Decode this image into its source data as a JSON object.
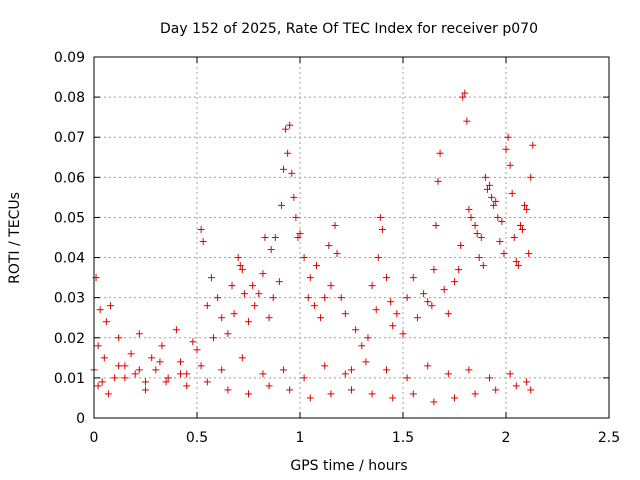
{
  "chart_data": {
    "type": "scatter",
    "title": "Day 152 of 2025, Rate Of TEC Index for receiver p070",
    "xlabel": "GPS time / hours",
    "ylabel": "ROTI / TECUs",
    "xlim": [
      0,
      2.5
    ],
    "ylim": [
      0,
      0.09
    ],
    "xticks": [
      0,
      0.5,
      1,
      1.5,
      2,
      2.5
    ],
    "xtick_labels": [
      "0",
      "0.5",
      "1",
      "1.5",
      "2",
      "2.5"
    ],
    "yticks": [
      0,
      0.01,
      0.02,
      0.03,
      0.04,
      0.05,
      0.06,
      0.07,
      0.08,
      0.09
    ],
    "ytick_labels": [
      "0",
      "0.01",
      "0.02",
      "0.03",
      "0.04",
      "0.05",
      "0.06",
      "0.07",
      "0.08",
      "0.09"
    ],
    "grid": true,
    "marker": "+",
    "color": "#e00000",
    "series": [
      {
        "name": "ROTI",
        "x": [
          0.0,
          0.01,
          0.02,
          0.03,
          0.05,
          0.06,
          0.08,
          0.1,
          0.12,
          0.15,
          0.18,
          0.2,
          0.22,
          0.25,
          0.28,
          0.3,
          0.33,
          0.36,
          0.4,
          0.42,
          0.45,
          0.48,
          0.5,
          0.52,
          0.53,
          0.55,
          0.57,
          0.58,
          0.6,
          0.62,
          0.65,
          0.67,
          0.68,
          0.7,
          0.71,
          0.72,
          0.73,
          0.75,
          0.77,
          0.78,
          0.8,
          0.82,
          0.83,
          0.85,
          0.86,
          0.87,
          0.88,
          0.9,
          0.91,
          0.92,
          0.93,
          0.94,
          0.95,
          0.96,
          0.97,
          0.98,
          0.99,
          1.0,
          1.02,
          1.04,
          1.05,
          1.07,
          1.08,
          1.1,
          1.12,
          1.14,
          1.15,
          1.17,
          1.18,
          1.2,
          1.22,
          1.25,
          1.27,
          1.3,
          1.33,
          1.35,
          1.37,
          1.38,
          1.39,
          1.4,
          1.42,
          1.44,
          1.45,
          1.47,
          1.5,
          1.52,
          1.55,
          1.57,
          1.6,
          1.62,
          1.64,
          1.65,
          1.66,
          1.67,
          1.68,
          1.7,
          1.72,
          1.75,
          1.77,
          1.78,
          1.79,
          1.8,
          1.81,
          1.82,
          1.83,
          1.85,
          1.86,
          1.87,
          1.88,
          1.89,
          1.9,
          1.91,
          1.92,
          1.93,
          1.94,
          1.95,
          1.96,
          1.97,
          1.98,
          1.99,
          2.0,
          2.01,
          2.02,
          2.03,
          2.04,
          2.05,
          2.06,
          2.07,
          2.08,
          2.09,
          2.1,
          2.11,
          2.12,
          2.13,
          0.02,
          0.07,
          0.15,
          0.25,
          0.35,
          0.45,
          0.55,
          0.65,
          0.75,
          0.85,
          0.95,
          1.05,
          1.15,
          1.25,
          1.35,
          1.45,
          1.55,
          1.65,
          1.75,
          1.85,
          1.95,
          2.05,
          2.12,
          0.04,
          0.12,
          0.22,
          0.32,
          0.42,
          0.52,
          0.62,
          0.72,
          0.82,
          0.92,
          1.02,
          1.12,
          1.22,
          1.32,
          1.42,
          1.52,
          1.62,
          1.72,
          1.82,
          1.92,
          2.02,
          2.1
        ],
        "y": [
          0.012,
          0.035,
          0.018,
          0.027,
          0.015,
          0.024,
          0.028,
          0.01,
          0.02,
          0.013,
          0.016,
          0.011,
          0.021,
          0.009,
          0.015,
          0.012,
          0.018,
          0.01,
          0.022,
          0.014,
          0.011,
          0.019,
          0.017,
          0.047,
          0.044,
          0.028,
          0.035,
          0.02,
          0.03,
          0.025,
          0.021,
          0.033,
          0.026,
          0.04,
          0.038,
          0.037,
          0.031,
          0.024,
          0.033,
          0.028,
          0.031,
          0.036,
          0.045,
          0.025,
          0.042,
          0.03,
          0.045,
          0.034,
          0.053,
          0.062,
          0.072,
          0.066,
          0.073,
          0.061,
          0.055,
          0.05,
          0.045,
          0.046,
          0.04,
          0.03,
          0.035,
          0.028,
          0.038,
          0.025,
          0.03,
          0.043,
          0.033,
          0.048,
          0.041,
          0.03,
          0.026,
          0.012,
          0.022,
          0.018,
          0.02,
          0.033,
          0.027,
          0.04,
          0.05,
          0.047,
          0.035,
          0.029,
          0.023,
          0.026,
          0.021,
          0.03,
          0.035,
          0.025,
          0.031,
          0.029,
          0.028,
          0.037,
          0.048,
          0.059,
          0.066,
          0.032,
          0.026,
          0.034,
          0.037,
          0.043,
          0.08,
          0.081,
          0.074,
          0.052,
          0.05,
          0.048,
          0.046,
          0.04,
          0.045,
          0.038,
          0.06,
          0.057,
          0.058,
          0.055,
          0.053,
          0.054,
          0.05,
          0.044,
          0.049,
          0.041,
          0.067,
          0.07,
          0.063,
          0.056,
          0.045,
          0.039,
          0.038,
          0.048,
          0.047,
          0.053,
          0.052,
          0.041,
          0.06,
          0.068,
          0.008,
          0.006,
          0.01,
          0.007,
          0.009,
          0.008,
          0.009,
          0.007,
          0.006,
          0.008,
          0.007,
          0.005,
          0.006,
          0.007,
          0.006,
          0.005,
          0.006,
          0.004,
          0.005,
          0.006,
          0.007,
          0.008,
          0.007,
          0.009,
          0.013,
          0.012,
          0.014,
          0.011,
          0.013,
          0.012,
          0.015,
          0.011,
          0.012,
          0.01,
          0.013,
          0.011,
          0.014,
          0.012,
          0.01,
          0.013,
          0.011,
          0.012,
          0.01,
          0.011,
          0.009
        ]
      }
    ]
  }
}
